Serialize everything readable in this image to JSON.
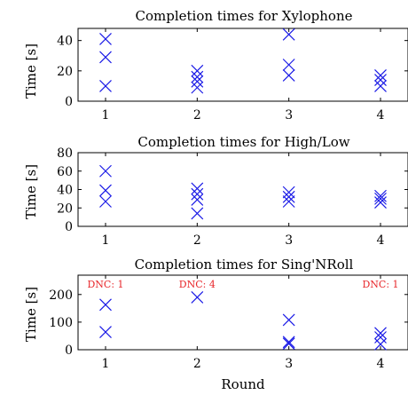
{
  "chart_data": [
    {
      "type": "scatter",
      "title": "Completion times for Xylophone",
      "ylabel": "Time [s]",
      "xlabel": "",
      "x_ticks": [
        1,
        2,
        3,
        4
      ],
      "y_ticks": [
        0,
        20,
        40
      ],
      "xlim": [
        0.7,
        4.3
      ],
      "ylim": [
        0,
        48
      ],
      "marker": "x",
      "color": "#1a1ae6",
      "points": [
        {
          "x": 1,
          "y": 41
        },
        {
          "x": 1,
          "y": 29
        },
        {
          "x": 1,
          "y": 10
        },
        {
          "x": 2,
          "y": 20
        },
        {
          "x": 2,
          "y": 16
        },
        {
          "x": 2,
          "y": 13
        },
        {
          "x": 2,
          "y": 9
        },
        {
          "x": 3,
          "y": 44
        },
        {
          "x": 3,
          "y": 24
        },
        {
          "x": 3,
          "y": 17
        },
        {
          "x": 4,
          "y": 17
        },
        {
          "x": 4,
          "y": 14
        },
        {
          "x": 4,
          "y": 10
        }
      ],
      "annotations": []
    },
    {
      "type": "scatter",
      "title": "Completion times for High/Low",
      "ylabel": "Time [s]",
      "xlabel": "",
      "x_ticks": [
        1,
        2,
        3,
        4
      ],
      "y_ticks": [
        0,
        20,
        40,
        60,
        80
      ],
      "xlim": [
        0.7,
        4.3
      ],
      "ylim": [
        0,
        80
      ],
      "marker": "x",
      "color": "#1a1ae6",
      "points": [
        {
          "x": 1,
          "y": 60
        },
        {
          "x": 1,
          "y": 39
        },
        {
          "x": 1,
          "y": 27
        },
        {
          "x": 2,
          "y": 41
        },
        {
          "x": 2,
          "y": 35
        },
        {
          "x": 2,
          "y": 29
        },
        {
          "x": 2,
          "y": 14
        },
        {
          "x": 3,
          "y": 37
        },
        {
          "x": 3,
          "y": 32
        },
        {
          "x": 3,
          "y": 27
        },
        {
          "x": 4,
          "y": 33
        },
        {
          "x": 4,
          "y": 30
        },
        {
          "x": 4,
          "y": 26
        }
      ],
      "annotations": []
    },
    {
      "type": "scatter",
      "title": "Completion times for Sing'NRoll",
      "ylabel": "Time [s]",
      "xlabel": "Round",
      "x_ticks": [
        1,
        2,
        3,
        4
      ],
      "y_ticks": [
        0,
        100,
        200
      ],
      "xlim": [
        0.7,
        4.3
      ],
      "ylim": [
        0,
        270
      ],
      "marker": "x",
      "color": "#1a1ae6",
      "points": [
        {
          "x": 1,
          "y": 163
        },
        {
          "x": 1,
          "y": 64
        },
        {
          "x": 2,
          "y": 190
        },
        {
          "x": 3,
          "y": 108
        },
        {
          "x": 3,
          "y": 28
        },
        {
          "x": 3,
          "y": 22
        },
        {
          "x": 4,
          "y": 60
        },
        {
          "x": 4,
          "y": 45
        },
        {
          "x": 4,
          "y": 20
        }
      ],
      "annotations": [
        {
          "x": 1,
          "text": "DNC: 1",
          "color": "#e8262a"
        },
        {
          "x": 2,
          "text": "DNC: 4",
          "color": "#e8262a"
        },
        {
          "x": 4,
          "text": "DNC: 1",
          "color": "#e8262a"
        }
      ]
    }
  ]
}
